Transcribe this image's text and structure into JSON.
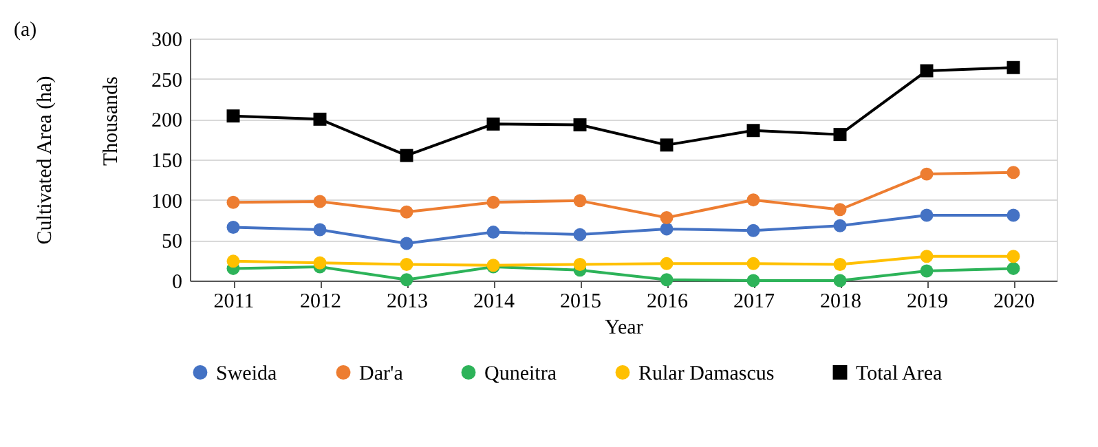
{
  "chart_data": {
    "type": "line",
    "ylabel": "Cultivated Area (ha)",
    "xlabel": "Year",
    "annotations": [
      "(a)",
      "Thousands"
    ],
    "categories": [
      "2011",
      "2012",
      "2013",
      "2014",
      "2015",
      "2016",
      "2017",
      "2018",
      "2019",
      "2020"
    ],
    "series": [
      {
        "name": "Sweida",
        "color": "#4472c4",
        "marker": "circle",
        "values": [
          66,
          63,
          46,
          60,
          57,
          64,
          62,
          68,
          81,
          81
        ]
      },
      {
        "name": "Dar'a",
        "color": "#ed7d31",
        "marker": "circle",
        "values": [
          97,
          98,
          85,
          97,
          99,
          78,
          100,
          88,
          132,
          134
        ]
      },
      {
        "name": "Quneitra",
        "color": "#2db359",
        "marker": "circle",
        "values": [
          15,
          17,
          1,
          17,
          13,
          1,
          0,
          0,
          12,
          15
        ]
      },
      {
        "name": "Rular Damascus",
        "color": "#ffc000",
        "marker": "circle",
        "values": [
          24,
          22,
          20,
          19,
          20,
          21,
          21,
          20,
          30,
          30
        ]
      },
      {
        "name": "Total Area",
        "color": "#000000",
        "marker": "square",
        "values": [
          204,
          200,
          155,
          194,
          193,
          168,
          186,
          181,
          260,
          264
        ]
      }
    ],
    "ylim": [
      0,
      300
    ],
    "yticks": [
      0,
      50,
      100,
      150,
      200,
      250,
      300
    ],
    "grid": "y",
    "legend": "bottom",
    "line_style": "solid"
  }
}
